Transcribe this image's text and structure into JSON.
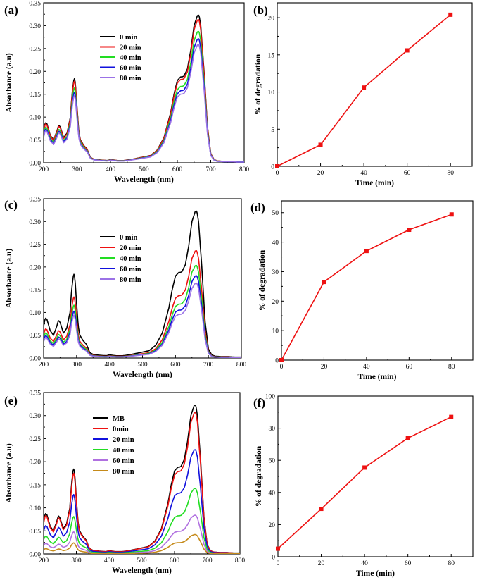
{
  "chart_data": [
    {
      "id": "a",
      "type": "line",
      "panel_label": "(a)",
      "xlabel": "Wavelength (nm)",
      "ylabel": "Absorbance (a.u)",
      "xlim": [
        200,
        800
      ],
      "ylim": [
        0,
        0.35
      ],
      "xticks": [
        200,
        300,
        400,
        500,
        600,
        700,
        800
      ],
      "yticks": [
        0.0,
        0.05,
        0.1,
        0.15,
        0.2,
        0.25,
        0.3,
        0.35
      ],
      "legend_position": "upper-left-center",
      "series": [
        {
          "name": "0 min",
          "color": "#000000",
          "scale": 1.0
        },
        {
          "name": "20 min",
          "color": "#ee1111",
          "scale": 0.97
        },
        {
          "name": "40 min",
          "color": "#22dd22",
          "scale": 0.89
        },
        {
          "name": "60 min",
          "color": "#1111dd",
          "scale": 0.84
        },
        {
          "name": "80 min",
          "color": "#9b72e6",
          "scale": 0.8
        }
      ]
    },
    {
      "id": "b",
      "type": "line",
      "panel_label": "(b)",
      "xlabel": "Time (min)",
      "ylabel": "% of degradation",
      "xlim": [
        0,
        90
      ],
      "ylim": [
        0,
        22
      ],
      "xticks": [
        0,
        20,
        40,
        60,
        80
      ],
      "yticks": [
        0,
        5,
        10,
        15,
        20
      ],
      "series": [
        {
          "name": "degradation",
          "color": "#ee1111",
          "x": [
            0,
            20,
            40,
            60,
            80
          ],
          "y": [
            0,
            2.9,
            10.6,
            15.6,
            20.4
          ]
        }
      ]
    },
    {
      "id": "c",
      "type": "line",
      "panel_label": "(c)",
      "xlabel": "Wavelength (nm)",
      "ylabel": "Absorbance (a.u)",
      "xlim": [
        200,
        800
      ],
      "ylim": [
        0,
        0.35
      ],
      "xticks": [
        200,
        300,
        400,
        500,
        600,
        700,
        800
      ],
      "yticks": [
        0.0,
        0.05,
        0.1,
        0.15,
        0.2,
        0.25,
        0.3,
        0.35
      ],
      "legend_position": "upper-left-center",
      "series": [
        {
          "name": "0 min",
          "color": "#000000",
          "scale": 1.0
        },
        {
          "name": "20 min",
          "color": "#ee1111",
          "scale": 0.73
        },
        {
          "name": "40 min",
          "color": "#22dd22",
          "scale": 0.63
        },
        {
          "name": "60 min",
          "color": "#1111dd",
          "scale": 0.56
        },
        {
          "name": "80 min",
          "color": "#9b72e6",
          "scale": 0.51
        }
      ]
    },
    {
      "id": "d",
      "type": "line",
      "panel_label": "(d)",
      "xlabel": "Time (min)",
      "ylabel": "% of degradation",
      "xlim": [
        0,
        90
      ],
      "ylim": [
        0,
        54
      ],
      "xticks": [
        0,
        20,
        40,
        60,
        80
      ],
      "yticks": [
        0,
        10,
        20,
        30,
        40,
        50
      ],
      "series": [
        {
          "name": "degradation",
          "color": "#ee1111",
          "x": [
            0,
            20,
            40,
            60,
            80
          ],
          "y": [
            0,
            26.5,
            37.0,
            44.2,
            49.4
          ]
        }
      ]
    },
    {
      "id": "e",
      "type": "line",
      "panel_label": "(e)",
      "xlabel": "Wavelength (nm)",
      "ylabel": "Absorbance (a.u)",
      "xlim": [
        200,
        800
      ],
      "ylim": [
        0,
        0.35
      ],
      "xticks": [
        200,
        300,
        400,
        500,
        600,
        700,
        800
      ],
      "yticks": [
        0.0,
        0.05,
        0.1,
        0.15,
        0.2,
        0.25,
        0.3,
        0.35
      ],
      "legend_position": "upper-left-center",
      "series": [
        {
          "name": "MB",
          "color": "#000000",
          "scale": 1.0
        },
        {
          "name": "0min",
          "color": "#ee1111",
          "scale": 0.95
        },
        {
          "name": "20 min",
          "color": "#1111dd",
          "scale": 0.7
        },
        {
          "name": "40 min",
          "color": "#22dd22",
          "scale": 0.44
        },
        {
          "name": "60 min",
          "color": "#b070e0",
          "scale": 0.26
        },
        {
          "name": "80 min",
          "color": "#c58a1a",
          "scale": 0.13
        }
      ]
    },
    {
      "id": "f",
      "type": "line",
      "panel_label": "(f)",
      "xlabel": "Time (min)",
      "ylabel": "% of degradation",
      "xlim": [
        0,
        90
      ],
      "ylim": [
        0,
        100
      ],
      "xticks": [
        0,
        20,
        40,
        60,
        80
      ],
      "yticks": [
        0,
        20,
        40,
        60,
        80,
        100
      ],
      "series": [
        {
          "name": "degradation",
          "color": "#ee1111",
          "x": [
            0,
            20,
            40,
            60,
            80
          ],
          "y": [
            5,
            29.8,
            55.5,
            73.8,
            87.0
          ]
        }
      ]
    }
  ],
  "mb_spectrum": {
    "description_units": "wavelength nm / absorbance a.u",
    "wavelength": [
      200,
      205,
      210,
      220,
      230,
      240,
      245,
      250,
      260,
      270,
      280,
      285,
      290,
      292,
      295,
      300,
      305,
      310,
      320,
      330,
      340,
      350,
      370,
      390,
      400,
      420,
      440,
      460,
      480,
      500,
      520,
      540,
      560,
      580,
      590,
      600,
      610,
      615,
      620,
      630,
      640,
      650,
      660,
      665,
      670,
      680,
      690,
      700,
      710,
      720,
      740,
      760,
      780,
      800
    ],
    "absorbance": [
      0.07,
      0.088,
      0.085,
      0.06,
      0.05,
      0.07,
      0.083,
      0.078,
      0.055,
      0.065,
      0.1,
      0.15,
      0.18,
      0.184,
      0.175,
      0.12,
      0.07,
      0.05,
      0.038,
      0.03,
      0.012,
      0.008,
      0.006,
      0.005,
      0.007,
      0.005,
      0.005,
      0.007,
      0.01,
      0.013,
      0.016,
      0.028,
      0.055,
      0.11,
      0.15,
      0.18,
      0.188,
      0.188,
      0.19,
      0.205,
      0.245,
      0.3,
      0.322,
      0.323,
      0.3,
      0.2,
      0.08,
      0.02,
      0.007,
      0.004,
      0.003,
      0.003,
      0.002,
      0.002
    ]
  }
}
